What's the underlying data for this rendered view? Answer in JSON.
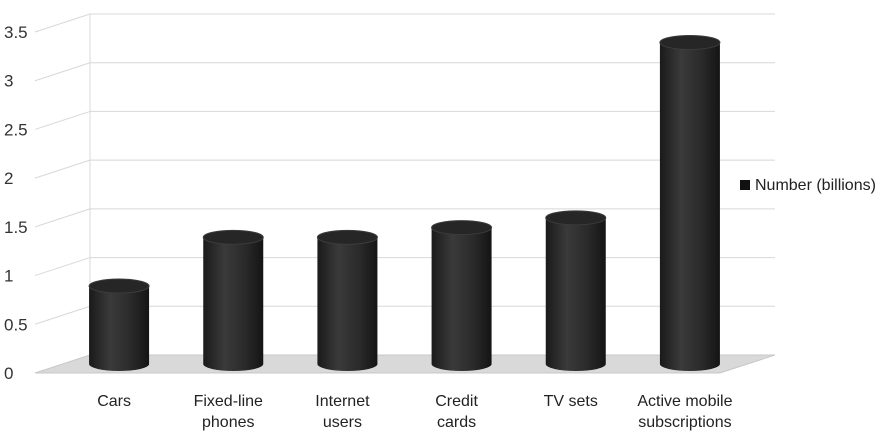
{
  "chart_data": {
    "type": "bar",
    "title": "",
    "xlabel": "",
    "ylabel": "",
    "ylim": [
      0,
      3.5
    ],
    "yticks": [
      "0",
      "0.5",
      "1",
      "1.5",
      "2",
      "2.5",
      "3",
      "3.5"
    ],
    "categories": [
      [
        "Cars"
      ],
      [
        "Fixed-line",
        "phones"
      ],
      [
        "Internet",
        "users"
      ],
      [
        "Credit",
        "cards"
      ],
      [
        "TV sets"
      ],
      [
        "Active mobile",
        "subscriptions"
      ]
    ],
    "series": [
      {
        "name": "Number (billions)",
        "values": [
          0.8,
          1.3,
          1.3,
          1.4,
          1.5,
          3.3
        ]
      }
    ],
    "grid": true,
    "legend_position": "right",
    "style": "3d-cylinder",
    "colors": {
      "bar": "#2b2b2b",
      "grid": "#d8d8d8",
      "floor": "#d9d9d9"
    }
  }
}
